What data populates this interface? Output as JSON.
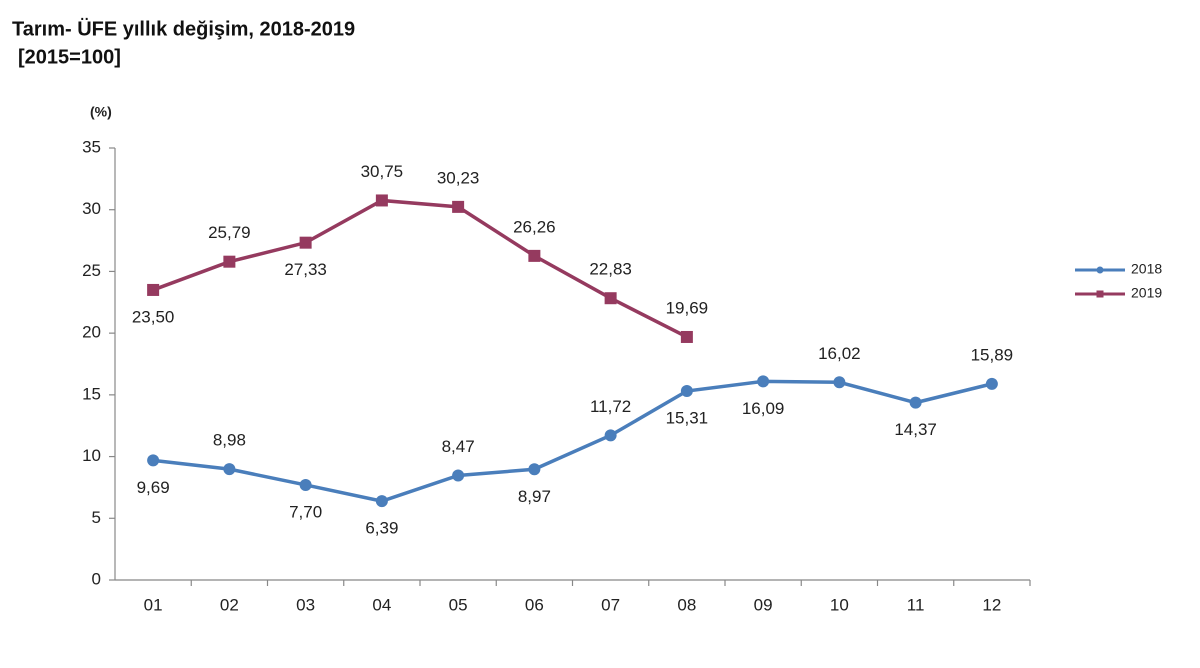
{
  "chart_data": {
    "type": "line",
    "title": "Tarım- ÜFE yıllık değişim, 2018-2019",
    "subtitle": "[2015=100]",
    "y_label": "(%)",
    "categories": [
      "01",
      "02",
      "03",
      "04",
      "05",
      "06",
      "07",
      "08",
      "09",
      "10",
      "11",
      "12"
    ],
    "series": [
      {
        "name": "2018",
        "color": "#4a7ebb",
        "values": [
          9.69,
          8.98,
          7.7,
          6.39,
          8.47,
          8.97,
          11.72,
          15.31,
          16.09,
          16.02,
          14.37,
          15.89
        ],
        "value_labels": [
          "9,69",
          "8,98",
          "7,70",
          "6,39",
          "8,47",
          "8,97",
          "11,72",
          "15,31",
          "16,09",
          "16,02",
          "14,37",
          "15,89"
        ]
      },
      {
        "name": "2019",
        "color": "#953a5f",
        "values": [
          23.5,
          25.79,
          27.33,
          30.75,
          30.23,
          26.26,
          22.83,
          19.69,
          null,
          null,
          null,
          null
        ],
        "value_labels": [
          "23,50",
          "25,79",
          "27,33",
          "30,75",
          "30,23",
          "26,26",
          "22,83",
          "19,69",
          null,
          null,
          null,
          null
        ]
      }
    ],
    "ylim": [
      0,
      35
    ],
    "yticks": [
      0,
      5,
      10,
      15,
      20,
      25,
      30,
      35
    ],
    "grid": false,
    "legend": "right"
  }
}
